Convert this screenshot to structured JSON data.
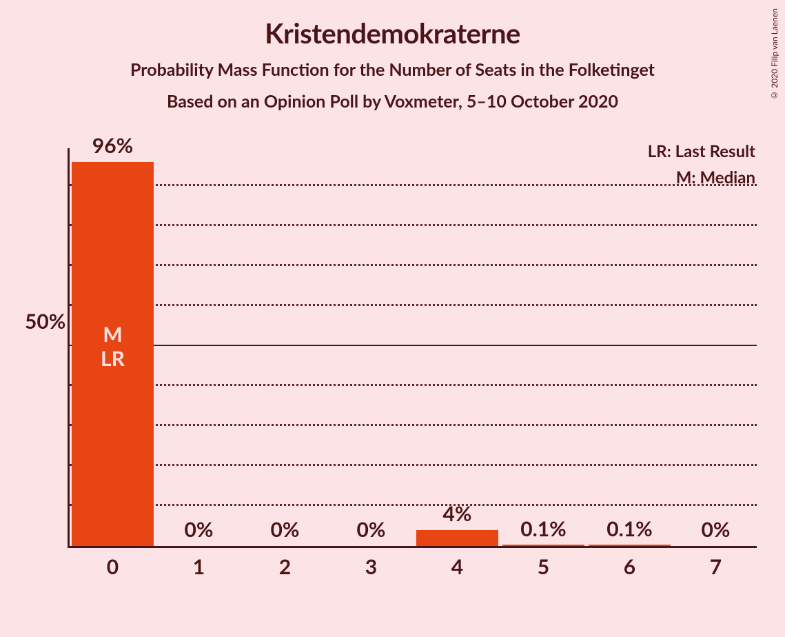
{
  "title": "Kristendemokraterne",
  "subtitle1": "Probability Mass Function for the Number of Seats in the Folketinget",
  "subtitle2": "Based on an Opinion Poll by Voxmeter, 5–10 October 2020",
  "copyright": "© 2020 Filip van Laenen",
  "chart": {
    "type": "bar",
    "background_color": "#fce4e6",
    "bar_color": "#e84515",
    "axis_color": "#4a1518",
    "text_color": "#4a1518",
    "in_bar_text_color": "#fce4e6",
    "title_fontsize": 40,
    "subtitle_fontsize": 25,
    "label_fontsize": 30,
    "legend_fontsize": 24,
    "ylim": [
      0,
      100
    ],
    "ytick_step": 10,
    "y_major_tick": 50,
    "y_label": "50%",
    "categories": [
      "0",
      "1",
      "2",
      "3",
      "4",
      "5",
      "6",
      "7"
    ],
    "values": [
      96,
      0,
      0,
      0,
      4,
      0.1,
      0.1,
      0
    ],
    "value_labels": [
      "96%",
      "0%",
      "0%",
      "0%",
      "4%",
      "0.1%",
      "0.1%",
      "0%"
    ],
    "bar_width_ratio": 0.95,
    "median_index": 0,
    "last_result_index": 0,
    "in_bar_lines": [
      "M",
      "LR"
    ],
    "legend_lr": "LR: Last Result",
    "legend_m": "M: Median"
  }
}
